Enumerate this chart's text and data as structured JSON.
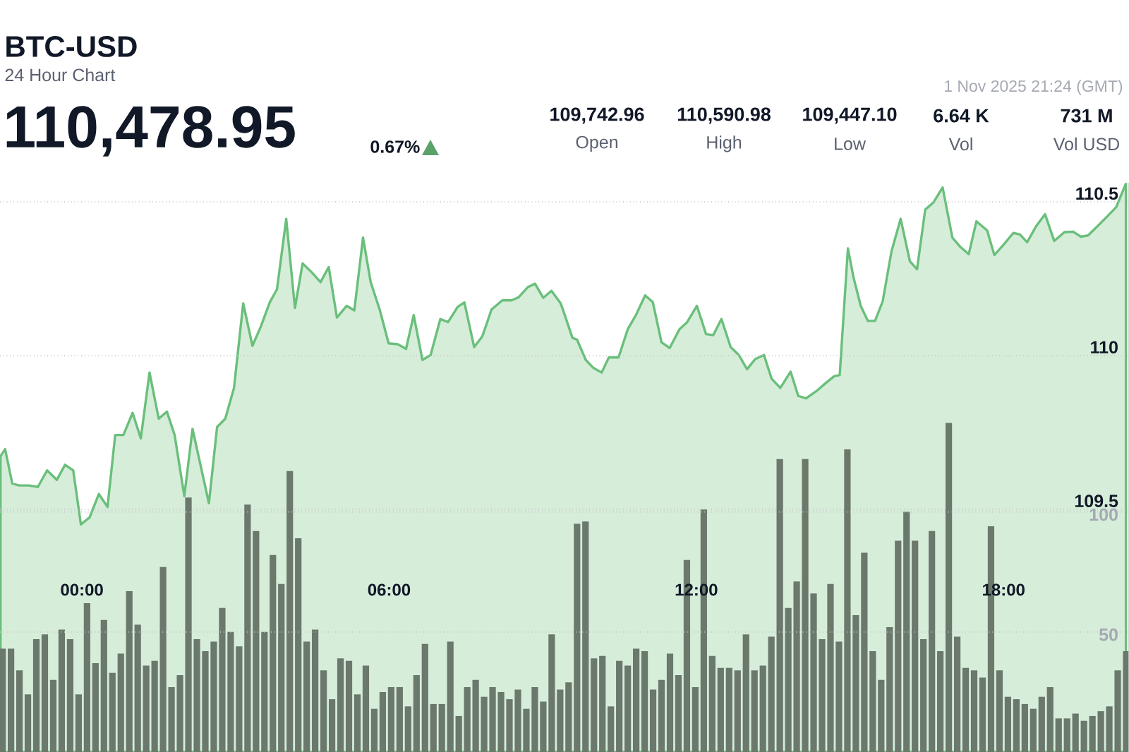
{
  "chart_data": {
    "type": "area",
    "title": "BTC-USD",
    "subtitle": "24 Hour Chart",
    "annotations": [
      "110,478.95",
      "0.67%",
      "109,742.96",
      "Open",
      "110,590.98",
      "High",
      "109,447.10",
      "Low",
      "6.64 K",
      "Vol",
      "731 M",
      "Vol USD",
      "1 Nov 2025 21:24 (GMT)"
    ],
    "series": [
      {
        "color": "#6abf7b",
        "x": [
          -1.59,
          -1.5,
          -1.36,
          -1.23,
          -1.04,
          -0.86,
          -0.68,
          -0.49,
          -0.33,
          -0.17,
          -0.02,
          0.15,
          0.33,
          0.5,
          0.65,
          0.81,
          0.99,
          1.15,
          1.32,
          1.5,
          1.66,
          1.81,
          2.0,
          2.16,
          2.48,
          2.64,
          2.8,
          2.97,
          3.15,
          3.33,
          3.49,
          3.67,
          3.81,
          3.99,
          4.16,
          4.31,
          4.5,
          4.66,
          4.82,
          4.98,
          5.17,
          5.32,
          5.49,
          5.64,
          5.82,
          5.99,
          6.17,
          6.33,
          6.48,
          6.65,
          6.81,
          7.0,
          7.15,
          7.34,
          7.47,
          7.66,
          7.82,
          8.0,
          8.21,
          8.39,
          8.53,
          8.71,
          8.85,
          9.01,
          9.17,
          9.35,
          9.4,
          9.58,
          9.67,
          9.84,
          9.99,
          10.15,
          10.29,
          10.48,
          10.66,
          10.82,
          11.0,
          11.15,
          11.32,
          11.48,
          11.67,
          11.82,
          12.01,
          12.19,
          12.33,
          12.49,
          12.67,
          12.83,
          12.99,
          13.15,
          13.32,
          13.47,
          13.64,
          13.84,
          13.99,
          14.14,
          14.34,
          14.52,
          14.69,
          14.8,
          14.96,
          15.07,
          15.21,
          15.35,
          15.49,
          15.64,
          15.81,
          15.99,
          16.17,
          16.31,
          16.47,
          16.63,
          16.81,
          17.0,
          17.16,
          17.32,
          17.47,
          17.68,
          17.82,
          18.0,
          18.19,
          18.32,
          18.46,
          18.64,
          18.81,
          18.99,
          19.19,
          19.36,
          19.51,
          19.65,
          19.84,
          20.02,
          20.2,
          20.39
        ],
        "values": [
          109.673,
          109.696,
          109.584,
          109.578,
          109.578,
          109.573,
          109.627,
          109.596,
          109.645,
          109.627,
          109.451,
          109.474,
          109.55,
          109.508,
          109.742,
          109.742,
          109.814,
          109.731,
          109.945,
          109.795,
          109.818,
          109.742,
          109.543,
          109.762,
          109.52,
          109.768,
          109.795,
          109.895,
          110.17,
          110.032,
          110.093,
          110.174,
          110.216,
          110.445,
          110.155,
          110.3,
          110.269,
          110.239,
          110.288,
          110.124,
          110.162,
          110.147,
          110.384,
          110.239,
          110.147,
          110.04,
          110.037,
          110.022,
          110.132,
          109.986,
          110.002,
          110.119,
          110.109,
          110.159,
          110.173,
          110.028,
          110.063,
          110.15,
          110.18,
          110.18,
          110.19,
          110.223,
          110.234,
          110.188,
          110.211,
          110.17,
          110.147,
          110.058,
          110.052,
          109.986,
          109.96,
          109.945,
          109.994,
          109.994,
          110.086,
          110.132,
          110.196,
          110.174,
          110.043,
          110.025,
          110.086,
          110.109,
          110.162,
          110.07,
          110.067,
          110.119,
          110.028,
          110.002,
          109.956,
          109.989,
          110.002,
          109.925,
          109.895,
          109.948,
          109.869,
          109.861,
          109.884,
          109.91,
          109.933,
          109.937,
          110.349,
          110.254,
          110.162,
          110.113,
          110.113,
          110.177,
          110.338,
          110.445,
          110.307,
          110.281,
          110.475,
          110.498,
          110.547,
          110.384,
          110.353,
          110.33,
          110.437,
          110.407,
          110.327,
          110.361,
          110.399,
          110.394,
          110.369,
          110.422,
          110.46,
          110.373,
          110.402,
          110.403,
          110.387,
          110.391,
          110.422,
          110.452,
          110.483,
          110.56
        ]
      },
      {
        "type": "bar",
        "axis": "y2",
        "color": "#6b786c",
        "x": [
          -1.55,
          -1.385,
          -1.22,
          -1.055,
          -0.89,
          -0.725,
          -0.56,
          -0.395,
          -0.23,
          -0.065,
          0.1,
          0.265,
          0.43,
          0.595,
          0.76,
          0.925,
          1.09,
          1.255,
          1.42,
          1.585,
          1.75,
          1.915,
          2.08,
          2.245,
          2.41,
          2.575,
          2.74,
          2.905,
          3.07,
          3.235,
          3.4,
          3.565,
          3.73,
          3.895,
          4.06,
          4.225,
          4.39,
          4.555,
          4.72,
          4.885,
          5.05,
          5.215,
          5.38,
          5.545,
          5.71,
          5.875,
          6.04,
          6.205,
          6.37,
          6.535,
          6.7,
          6.865,
          7.03,
          7.195,
          7.36,
          7.525,
          7.69,
          7.855,
          8.02,
          8.185,
          8.35,
          8.515,
          8.68,
          8.845,
          9.01,
          9.175,
          9.34,
          9.505,
          9.67,
          9.835,
          10.0,
          10.165,
          10.33,
          10.495,
          10.66,
          10.825,
          10.99,
          11.155,
          11.32,
          11.485,
          11.65,
          11.815,
          11.98,
          12.145,
          12.31,
          12.475,
          12.64,
          12.805,
          12.97,
          13.135,
          13.3,
          13.465,
          13.63,
          13.795,
          13.96,
          14.125,
          14.29,
          14.455,
          14.62,
          14.785,
          14.95,
          15.115,
          15.28,
          15.445,
          15.61,
          15.775,
          15.94,
          16.105,
          16.27,
          16.435,
          16.6,
          16.765,
          16.93,
          17.095,
          17.26,
          17.425,
          17.59,
          17.755,
          17.92,
          18.085,
          18.25,
          18.415,
          18.58,
          18.745,
          18.91,
          19.075,
          19.24,
          19.405,
          19.57,
          19.735,
          19.9,
          20.065,
          20.23,
          20.395
        ],
        "values": [
          43,
          43,
          34,
          24,
          47,
          49,
          30,
          51,
          47,
          24,
          62,
          37,
          55,
          33,
          41,
          67,
          53,
          36,
          38,
          77,
          27,
          32,
          106,
          47,
          42,
          46,
          60,
          50,
          44,
          103,
          92,
          50,
          82,
          70,
          117,
          89,
          46,
          51,
          34,
          22,
          39,
          38,
          24,
          36,
          18,
          25,
          27,
          27,
          19,
          32,
          45,
          20,
          20,
          46,
          15,
          27,
          30,
          23,
          27,
          25,
          22,
          26,
          18,
          27,
          21,
          49,
          26,
          29,
          95,
          96,
          39,
          40,
          19,
          38,
          36,
          43,
          42,
          26,
          30,
          41,
          32,
          80,
          27,
          101,
          40,
          35,
          35,
          34,
          49,
          34,
          36,
          48,
          122,
          60,
          71,
          122,
          66,
          47,
          70,
          46,
          126,
          57,
          83,
          42,
          30,
          52,
          88,
          100,
          88,
          47,
          92,
          42,
          137,
          48,
          35,
          34,
          31,
          94,
          34,
          23,
          22,
          20,
          18,
          23,
          27,
          14,
          14,
          16,
          13,
          15,
          17,
          19,
          34,
          42
        ]
      }
    ],
    "xlim": [
      -1.6,
      20.45
    ],
    "xticks": [
      {
        "value": 0,
        "label": "00:00"
      },
      {
        "value": 6,
        "label": "06:00"
      },
      {
        "value": 12,
        "label": "12:00"
      },
      {
        "value": 18,
        "label": "18:00"
      }
    ],
    "ylim": [
      108.711,
      110.562
    ],
    "yticks": [
      109.5,
      110,
      110.5
    ],
    "y2lim": [
      0,
      237
    ],
    "y2ticks": [
      50,
      100
    ],
    "grid": "y"
  }
}
